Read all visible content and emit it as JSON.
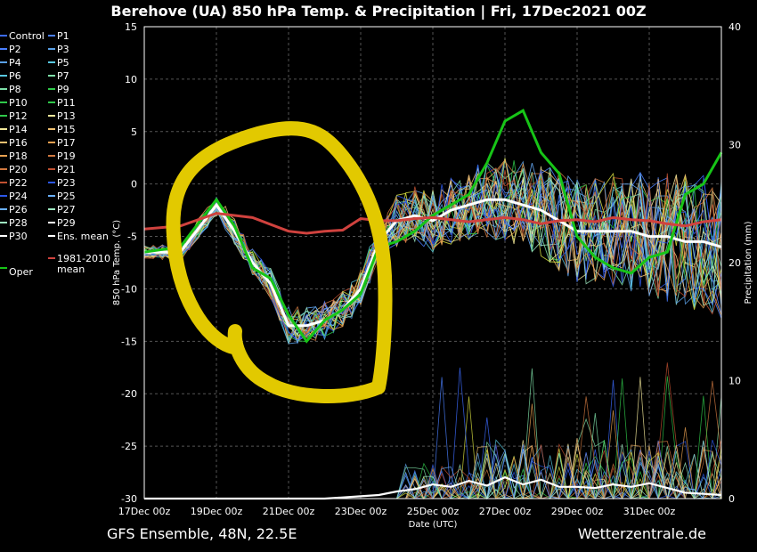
{
  "chart_data": {
    "type": "line",
    "title": "Berehove  (UA)  850 hPa Temp. & Precipitation | Fri, 17Dec2021 00Z",
    "ylabel": "850 hPa Temp. (°C)",
    "y2label": "Precipitation (mm)",
    "xlabel": "Date (UTC)",
    "footer_left": "GFS Ensemble, 48N, 22.5E",
    "footer_right": "Wetterzentrale.de",
    "ylim": [
      -30,
      15
    ],
    "y2lim": [
      0,
      40
    ],
    "xlim": [
      0,
      16
    ],
    "x_tick_labels": [
      "17Dec 00z",
      "19Dec 00z",
      "21Dec 00z",
      "23Dec 00z",
      "25Dec 00z",
      "27Dec 00z",
      "29Dec 00z",
      "31Dec 00z"
    ],
    "x_tick_values": [
      0,
      2,
      4,
      6,
      8,
      10,
      12,
      14
    ],
    "y_ticks": [
      15,
      10,
      5,
      0,
      -5,
      -10,
      -15,
      -20,
      -25,
      -30
    ],
    "y2_ticks": [
      40,
      30,
      20,
      10,
      0
    ],
    "grid": true,
    "legend_placement": "left",
    "legend": [
      [
        "Control",
        "P1"
      ],
      [
        "P2",
        "P3"
      ],
      [
        "P4",
        "P5"
      ],
      [
        "P6",
        "P7"
      ],
      [
        "P8",
        "P9"
      ],
      [
        "P10",
        "P11"
      ],
      [
        "P12",
        "P13"
      ],
      [
        "P14",
        "P15"
      ],
      [
        "P16",
        "P17"
      ],
      [
        "P18",
        "P19"
      ],
      [
        "P20",
        "P21"
      ],
      [
        "P22",
        "P23"
      ],
      [
        "P24",
        "P25"
      ],
      [
        "P26",
        "P27"
      ],
      [
        "P28",
        "P29"
      ],
      [
        "P30",
        "Ens. mean"
      ]
    ],
    "legend_extra": [
      "1981-2010",
      "mean"
    ],
    "legend_oper": "Oper",
    "colors": {
      "members": [
        "#3c6bff",
        "#4a7fff",
        "#5aa0e6",
        "#58c8e0",
        "#7ee0a8",
        "#2fc84a",
        "#d8e040",
        "#f2e89a",
        "#f0c070",
        "#e8a050",
        "#d07840",
        "#c05030",
        "#2c57e8",
        "#6ab0ff",
        "#9ee8c0",
        "#ffcc80"
      ],
      "ens_mean": "#ffffff",
      "climate_mean": "#d0423e",
      "oper": "#17c417",
      "annotation": "#e2c900"
    },
    "series": [
      {
        "name": "Ens. mean",
        "x": [
          0,
          1,
          2,
          2.5,
          3,
          3.5,
          4,
          4.5,
          5,
          5.5,
          6,
          6.5,
          7,
          7.5,
          8,
          8.5,
          9,
          9.5,
          10,
          10.5,
          11,
          11.5,
          12,
          12.5,
          13,
          13.5,
          14,
          14.5,
          15,
          15.5,
          16
        ],
        "values": [
          -6.5,
          -6.5,
          -2,
          -4.5,
          -7.5,
          -9.5,
          -13.5,
          -13.5,
          -13,
          -12,
          -10,
          -5.5,
          -3.5,
          -3,
          -3.5,
          -2.5,
          -2,
          -1.5,
          -1.5,
          -2,
          -2.5,
          -3.5,
          -4.5,
          -4.5,
          -4.5,
          -4.5,
          -5,
          -5,
          -5.5,
          -5.5,
          -6
        ]
      },
      {
        "name": "Oper",
        "x": [
          0,
          1,
          2,
          2.5,
          3,
          3.5,
          4,
          4.5,
          5,
          5.5,
          6,
          6.5,
          7,
          7.5,
          8,
          8.5,
          9,
          9.5,
          10,
          10.5,
          11,
          11.5,
          12,
          12.5,
          13,
          13.5,
          14,
          14.5,
          15,
          15.5,
          16
        ],
        "values": [
          -6.5,
          -6,
          -1.5,
          -4,
          -8,
          -9,
          -12.5,
          -15,
          -13,
          -12,
          -10.5,
          -6,
          -5.5,
          -4.5,
          -3,
          -2,
          -1,
          2,
          6,
          7,
          3,
          1,
          -5,
          -7,
          -8,
          -8.5,
          -7,
          -6.5,
          -1,
          0,
          3
        ]
      },
      {
        "name": "1981-2010 mean",
        "x": [
          0,
          1,
          2,
          3,
          4,
          4.5,
          5,
          5.5,
          6,
          6.5,
          7,
          7.5,
          8,
          8.5,
          9,
          9.5,
          10,
          10.5,
          11,
          11.5,
          12,
          12.5,
          13,
          13.5,
          14,
          14.5,
          15,
          15.5,
          16
        ],
        "values": [
          -4.3,
          -4,
          -2.8,
          -3.2,
          -4.5,
          -4.7,
          -4.5,
          -4.4,
          -3.3,
          -3.5,
          -3.5,
          -3.3,
          -3.2,
          -3.4,
          -3.6,
          -3.4,
          -3.2,
          -3.4,
          -3.8,
          -3.5,
          -3.4,
          -3.6,
          -3.2,
          -3.4,
          -3.5,
          -3.8,
          -4,
          -3.6,
          -3.4
        ]
      }
    ],
    "precip_mean": {
      "x": [
        0,
        5,
        6,
        6.5,
        7,
        7.5,
        8,
        8.5,
        9,
        9.5,
        10,
        10.5,
        11,
        11.5,
        12,
        12.5,
        13,
        13.5,
        14,
        14.5,
        15,
        15.5,
        16
      ],
      "values": [
        0,
        0,
        0.2,
        0.3,
        0.6,
        0.8,
        1.2,
        1.0,
        1.5,
        1.1,
        1.8,
        1.2,
        1.6,
        1.0,
        1.0,
        0.9,
        1.2,
        1.0,
        1.3,
        0.9,
        0.5,
        0.4,
        0.3
      ]
    }
  }
}
